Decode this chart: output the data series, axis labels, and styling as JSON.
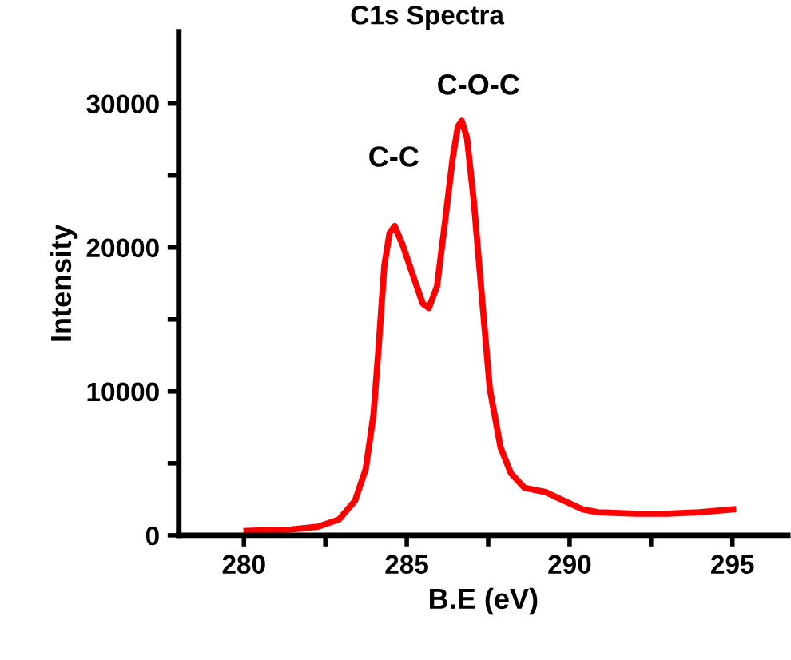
{
  "chart_data": {
    "type": "line",
    "title": "C1s Spectra",
    "xlabel": "B.E (eV)",
    "ylabel": "Intensity",
    "x": [
      280.08,
      281.46,
      282.27,
      282.92,
      283.41,
      283.74,
      283.98,
      284.14,
      284.31,
      284.47,
      284.63,
      284.87,
      285.2,
      285.49,
      285.68,
      285.93,
      286.17,
      286.41,
      286.57,
      286.69,
      286.85,
      287.06,
      287.31,
      287.55,
      287.88,
      288.2,
      288.61,
      289.26,
      289.83,
      290.4,
      290.88,
      292.02,
      293.0,
      293.97,
      295.02
    ],
    "series": [
      {
        "color": "#ff0000",
        "values": [
          300,
          400,
          600,
          1100,
          2400,
          4600,
          8400,
          13200,
          18700,
          21000,
          21500,
          20200,
          18000,
          16100,
          15800,
          17300,
          21700,
          26200,
          28400,
          28800,
          27600,
          23200,
          16500,
          10200,
          6100,
          4300,
          3300,
          3000,
          2400,
          1800,
          1600,
          1500,
          1500,
          1600,
          1800
        ]
      }
    ],
    "annotations": [
      "C-C",
      "C-O-C"
    ],
    "xlim": [
      278,
      296.7
    ],
    "xticks": [
      280,
      {
        "value": 282.5,
        "label": null
      },
      285,
      {
        "value": 287.5,
        "label": null
      },
      290,
      {
        "value": 292.5,
        "label": null
      },
      295
    ],
    "ylim": [
      0,
      35000
    ],
    "yticks": [
      0,
      {
        "value": 5000,
        "label": null
      },
      10000,
      {
        "value": 15000,
        "label": null
      },
      20000,
      {
        "value": 25000,
        "label": null
      },
      30000
    ],
    "grid": false,
    "legend": false,
    "marker": "none",
    "line_style": "solid"
  }
}
